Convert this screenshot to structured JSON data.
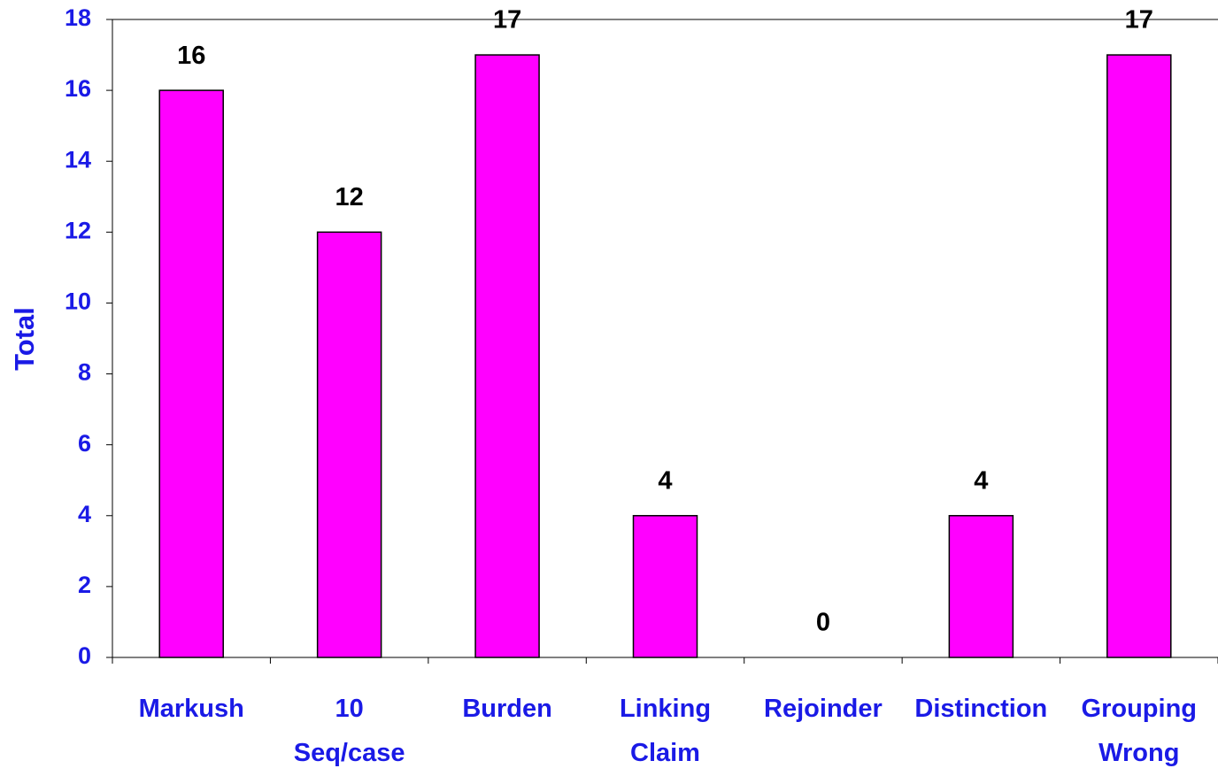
{
  "chart_data": {
    "type": "bar",
    "y_label": "Total",
    "categories": [
      [
        "Markush"
      ],
      [
        "10",
        "Seq/case"
      ],
      [
        "Burden"
      ],
      [
        "Linking",
        "Claim"
      ],
      [
        "Rejoinder"
      ],
      [
        "Distinction"
      ],
      [
        "Grouping",
        "Wrong"
      ]
    ],
    "values": [
      16,
      12,
      17,
      4,
      0,
      4,
      17
    ],
    "color": "#ff00ff",
    "ylim": [
      0,
      18
    ],
    "yticks": [
      0,
      2,
      4,
      6,
      8,
      10,
      12,
      14,
      16,
      18
    ],
    "grid": false
  }
}
